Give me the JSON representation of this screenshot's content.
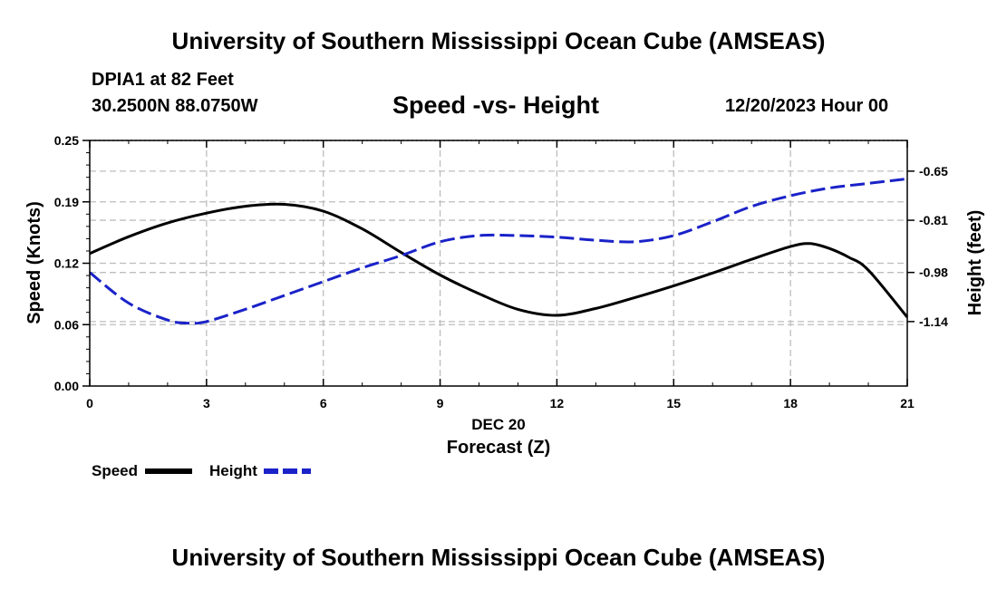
{
  "header": {
    "title": "University of Southern Mississippi Ocean Cube (AMSEAS)",
    "station": "DPIA1 at 82 Feet",
    "coords": "30.2500N  88.0750W",
    "subtitle": "Speed -vs- Height",
    "datetime": "12/20/2023 Hour 00"
  },
  "footer": {
    "title": "University of Southern Mississippi Ocean Cube (AMSEAS)"
  },
  "chart_data": {
    "type": "line",
    "title": "Speed -vs- Height",
    "xlabel": "Forecast (Z)",
    "xdate_label": "DEC 20",
    "ylabel": "Speed (Knots)",
    "y2label": "Height (feet)",
    "xlim": [
      0,
      21
    ],
    "ylim": [
      0,
      0.25
    ],
    "y2lim": [
      -1.35,
      -0.55
    ],
    "x_ticks": [
      "0",
      "3",
      "6",
      "9",
      "12",
      "15",
      "18",
      "21"
    ],
    "x_tick_values": [
      0,
      3,
      6,
      9,
      12,
      15,
      18,
      21
    ],
    "y_ticks": [
      "0.00",
      "0.06",
      "0.12",
      "0.19",
      "0.25"
    ],
    "y_tick_values": [
      0.0,
      0.0625,
      0.125,
      0.1875,
      0.25
    ],
    "y2_ticks": [
      "-1.14",
      "-0.98",
      "-0.81",
      "-0.65"
    ],
    "y2_tick_values": [
      -1.14,
      -0.98,
      -0.81,
      -0.65
    ],
    "grid": true,
    "series": [
      {
        "name": "Speed",
        "color": "#000000",
        "dash": "solid",
        "axis": "left",
        "x": [
          0,
          1,
          2,
          3,
          4,
          5,
          6,
          7,
          8,
          9,
          10,
          11,
          12,
          13,
          14,
          15,
          16,
          17,
          18,
          18.5,
          19,
          19.5,
          20,
          21
        ],
        "values": [
          0.135,
          0.152,
          0.166,
          0.176,
          0.183,
          0.185,
          0.178,
          0.16,
          0.136,
          0.113,
          0.094,
          0.078,
          0.072,
          0.079,
          0.09,
          0.102,
          0.115,
          0.129,
          0.142,
          0.145,
          0.14,
          0.131,
          0.118,
          0.07
        ]
      },
      {
        "name": "Height",
        "color": "#1a22c8",
        "dash": "dashed",
        "axis": "right",
        "x": [
          0,
          1,
          2,
          2.5,
          3,
          4,
          5,
          6,
          7,
          8,
          9,
          10,
          11,
          12,
          13,
          14,
          15,
          16,
          17,
          18,
          19,
          20,
          21
        ],
        "values": [
          -0.98,
          -1.08,
          -1.135,
          -1.145,
          -1.14,
          -1.1,
          -1.055,
          -1.01,
          -0.965,
          -0.925,
          -0.88,
          -0.86,
          -0.86,
          -0.865,
          -0.875,
          -0.88,
          -0.86,
          -0.815,
          -0.765,
          -0.73,
          -0.705,
          -0.69,
          -0.675
        ]
      }
    ],
    "legend": {
      "position": "bottom-left",
      "entries": [
        "Speed",
        "Height"
      ]
    }
  }
}
